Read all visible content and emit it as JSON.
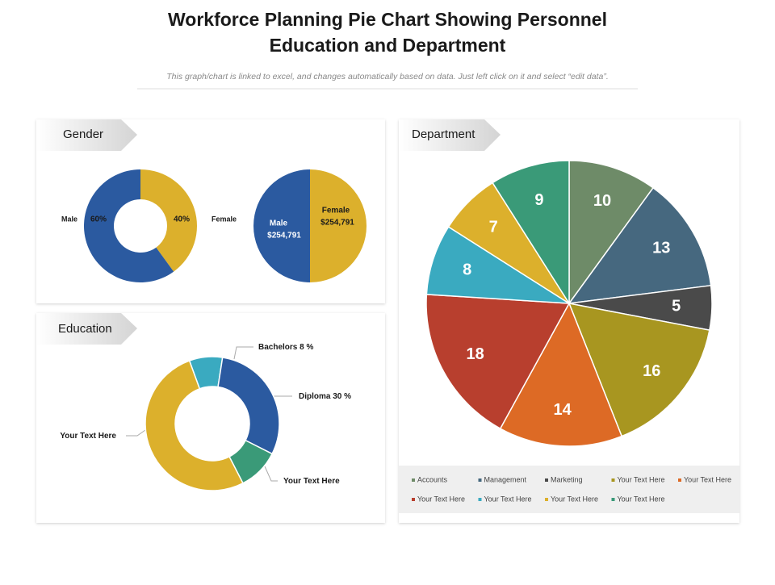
{
  "header": {
    "title_lines": [
      "Workforce Planning Pie Chart Showing Personnel",
      "Education and Department"
    ],
    "subtitle": "This graph/chart is linked to excel, and changes automatically based on data. Just left click on it and select “edit data”."
  },
  "panels": [
    "Gender",
    "Education",
    "Department"
  ],
  "chart_data": [
    {
      "type": "donut",
      "categories": [
        "Female",
        "Male"
      ],
      "values": [
        40,
        60
      ],
      "value_labels": [
        "40%",
        "60%"
      ],
      "colors": [
        "#dcb02c",
        "#2b5aa0"
      ]
    },
    {
      "type": "pie",
      "categories": [
        "Female",
        "Male"
      ],
      "values": [
        254791,
        254791
      ],
      "value_labels": [
        "$254,791",
        "$254,791"
      ],
      "colors": [
        "#dcb02c",
        "#2b5aa0"
      ]
    },
    {
      "type": "donut",
      "categories": [
        "Bachelors",
        "Diploma",
        "Your Text Here",
        "Your Text Here"
      ],
      "values": [
        8,
        30,
        10,
        52
      ],
      "value_labels": [
        "8 %",
        "30 %",
        null,
        null
      ],
      "colors": [
        "#3aaac0",
        "#2b5aa0",
        "#3a9a78",
        "#dcb02c"
      ]
    },
    {
      "type": "pie",
      "categories": [
        "Accounts",
        "Management",
        "Marketing",
        "Your Text Here",
        "Your Text Here",
        "Your Text Here",
        "Your Text Here",
        "Your Text Here",
        "Your Text Here"
      ],
      "values": [
        10,
        13,
        5,
        16,
        14,
        18,
        8,
        7,
        9
      ],
      "colors": [
        "#6e8b68",
        "#46687f",
        "#4a4a4a",
        "#a89620",
        "#dd6a25",
        "#b83f2e",
        "#3aaac0",
        "#dcb02c",
        "#3a9a78"
      ],
      "legend": true
    }
  ]
}
